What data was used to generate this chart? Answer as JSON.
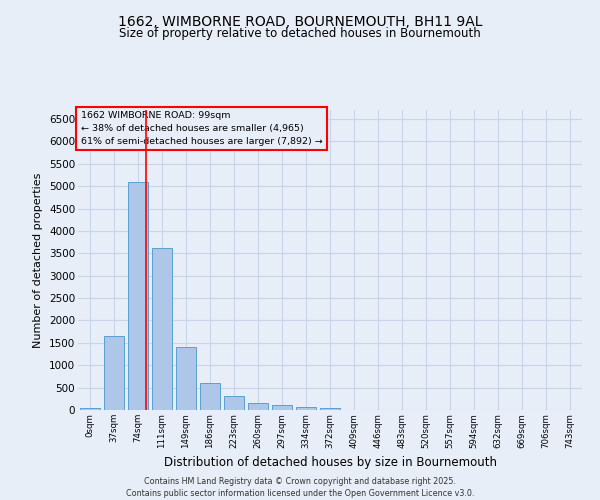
{
  "title_line1": "1662, WIMBORNE ROAD, BOURNEMOUTH, BH11 9AL",
  "title_line2": "Size of property relative to detached houses in Bournemouth",
  "xlabel": "Distribution of detached houses by size in Bournemouth",
  "ylabel": "Number of detached properties",
  "footer_line1": "Contains HM Land Registry data © Crown copyright and database right 2025.",
  "footer_line2": "Contains public sector information licensed under the Open Government Licence v3.0.",
  "bar_labels": [
    "0sqm",
    "37sqm",
    "74sqm",
    "111sqm",
    "149sqm",
    "186sqm",
    "223sqm",
    "260sqm",
    "297sqm",
    "334sqm",
    "372sqm",
    "409sqm",
    "446sqm",
    "483sqm",
    "520sqm",
    "557sqm",
    "594sqm",
    "632sqm",
    "669sqm",
    "706sqm",
    "743sqm"
  ],
  "bar_values": [
    50,
    1650,
    5100,
    3620,
    1400,
    610,
    310,
    155,
    110,
    75,
    40,
    0,
    0,
    0,
    0,
    0,
    0,
    0,
    0,
    0,
    0
  ],
  "bar_color": "#aec6e8",
  "bar_edge_color": "#5a9fd4",
  "grid_color": "#c8d4e8",
  "background_color": "#e8eef8",
  "annotation_title": "1662 WIMBORNE ROAD: 99sqm",
  "annotation_line1": "← 38% of detached houses are smaller (4,965)",
  "annotation_line2": "61% of semi-detached houses are larger (7,892) →",
  "ylim": [
    0,
    6700
  ],
  "yticks": [
    0,
    500,
    1000,
    1500,
    2000,
    2500,
    3000,
    3500,
    4000,
    4500,
    5000,
    5500,
    6000,
    6500
  ],
  "red_line_x": 2.34
}
